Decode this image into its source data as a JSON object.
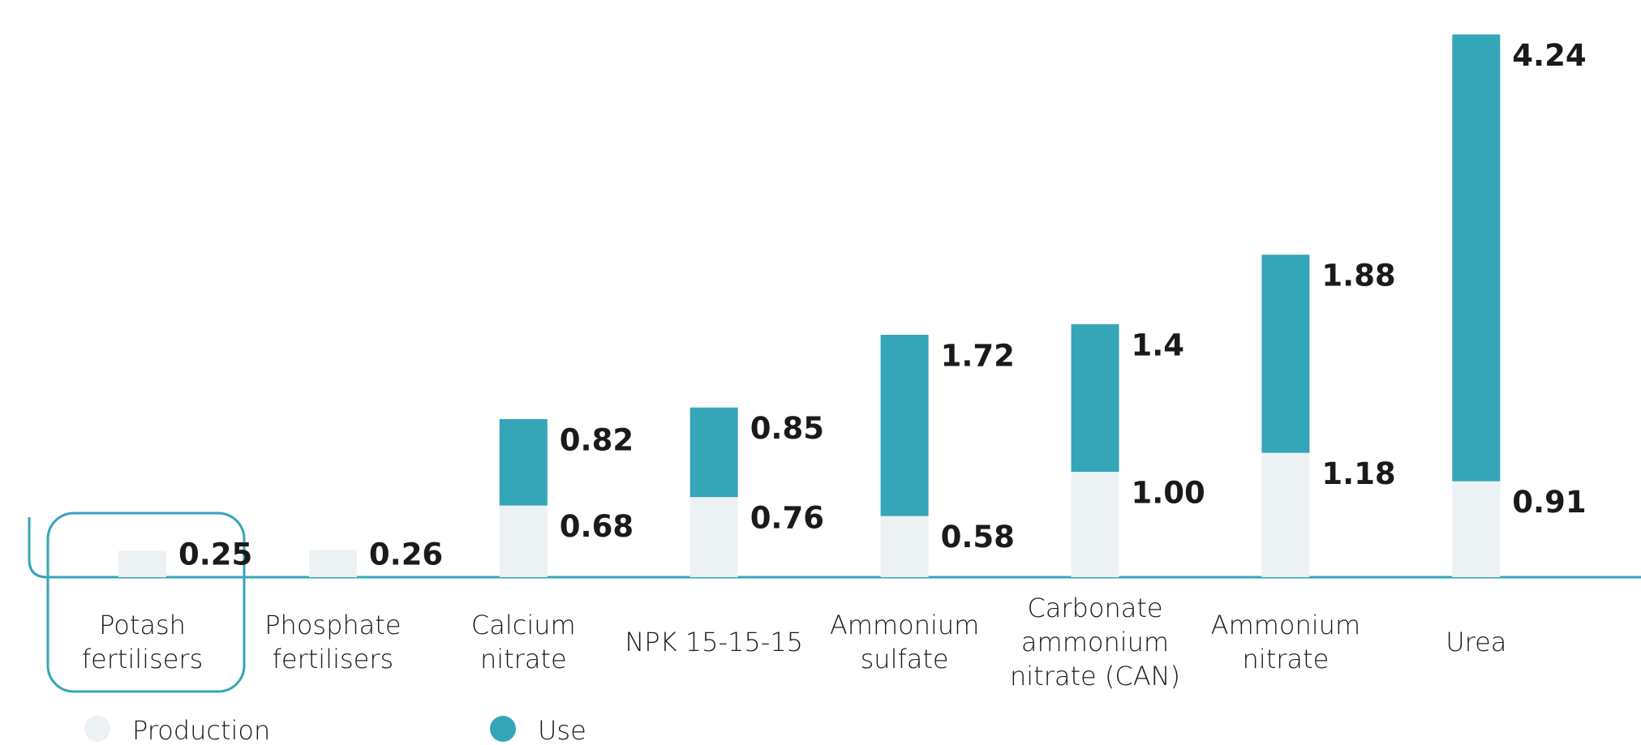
{
  "chart_data": {
    "type": "stacked_bar",
    "categories": [
      "Potash\nfertilisers",
      "Phosphate\nfertilisers",
      "Calcium\nnitrate",
      "NPK 15-15-15",
      "Ammonium\nsulfate",
      "Carbonate\nammonium\nnitrate (CAN)",
      "Ammonium\nnitrate",
      "Urea"
    ],
    "series": [
      {
        "name": "Production",
        "color": "#ecf1f4",
        "values": [
          0.25,
          0.26,
          0.68,
          0.76,
          0.58,
          1.0,
          1.18,
          0.91
        ],
        "value_labels": [
          "0.25",
          "0.26",
          "0.68",
          "0.76",
          "0.58",
          "1.00",
          "1.18",
          "0.91"
        ]
      },
      {
        "name": "Use",
        "color": "#35a5b8",
        "values": [
          null,
          null,
          0.82,
          0.85,
          1.72,
          1.4,
          1.88,
          4.24
        ]
      }
    ]
  }
}
